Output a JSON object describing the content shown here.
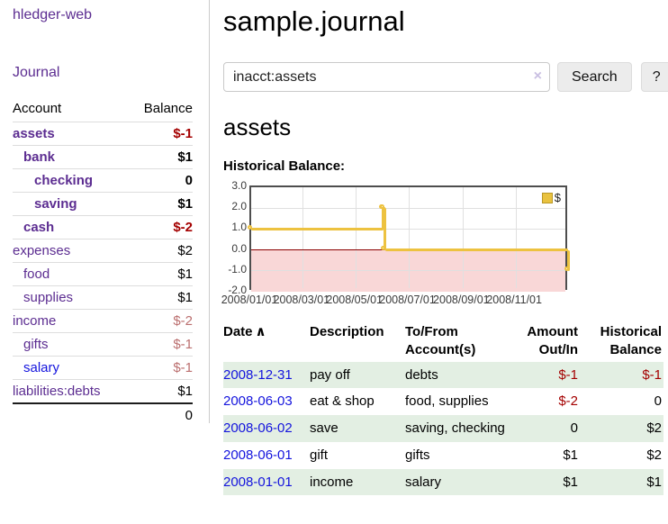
{
  "app": {
    "brand": "hledger-web"
  },
  "sidebar": {
    "journal_link": "Journal",
    "accounts_table": {
      "headers": {
        "account": "Account",
        "balance": "Balance"
      },
      "rows": [
        {
          "account": "assets",
          "balance": "$-1",
          "indent": 0,
          "bold": true,
          "account_color": "purple",
          "balance_tone": "neg-strong"
        },
        {
          "account": "bank",
          "balance": "$1",
          "indent": 1,
          "bold": true,
          "account_color": "purple",
          "balance_tone": "normal"
        },
        {
          "account": "checking",
          "balance": "0",
          "indent": 2,
          "bold": true,
          "account_color": "purple",
          "balance_tone": "normal"
        },
        {
          "account": "saving",
          "balance": "$1",
          "indent": 2,
          "bold": true,
          "account_color": "purple",
          "balance_tone": "normal"
        },
        {
          "account": "cash",
          "balance": "$-2",
          "indent": 1,
          "bold": true,
          "account_color": "purple",
          "balance_tone": "neg-strong"
        },
        {
          "account": "expenses",
          "balance": "$2",
          "indent": 0,
          "bold": false,
          "account_color": "purple",
          "balance_tone": "normal"
        },
        {
          "account": "food",
          "balance": "$1",
          "indent": 1,
          "bold": false,
          "account_color": "purple",
          "balance_tone": "normal"
        },
        {
          "account": "supplies",
          "balance": "$1",
          "indent": 1,
          "bold": false,
          "account_color": "purple",
          "balance_tone": "normal"
        },
        {
          "account": "income",
          "balance": "$-2",
          "indent": 0,
          "bold": false,
          "account_color": "purple",
          "balance_tone": "neg-soft"
        },
        {
          "account": "gifts",
          "balance": "$-1",
          "indent": 1,
          "bold": false,
          "account_color": "purple",
          "balance_tone": "neg-soft"
        },
        {
          "account": "salary",
          "balance": "$-1",
          "indent": 1,
          "bold": false,
          "account_color": "blue",
          "balance_tone": "neg-soft"
        },
        {
          "account": "liabilities:debts",
          "balance": "$1",
          "indent": 0,
          "bold": false,
          "account_color": "purple",
          "balance_tone": "normal"
        }
      ],
      "total": "0"
    }
  },
  "main": {
    "title": "sample.journal",
    "search": {
      "value": "inacct:assets",
      "clear_icon": "×",
      "search_button": "Search",
      "help_button": "?"
    },
    "section_title": "assets",
    "chart_heading": "Historical Balance:"
  },
  "chart_data": {
    "type": "line",
    "title": "Historical Balance",
    "step": true,
    "x_range": [
      "2008-01-01",
      "2009-01-01"
    ],
    "ylim": [
      -2,
      3
    ],
    "yticks": [
      {
        "value": 3,
        "label": "3.0"
      },
      {
        "value": 2,
        "label": "2.0"
      },
      {
        "value": 1,
        "label": "1.0"
      },
      {
        "value": 0,
        "label": "0.0"
      },
      {
        "value": -1,
        "label": "-1.0"
      },
      {
        "value": -2,
        "label": "-2.0"
      }
    ],
    "xticks": [
      {
        "date": "2008-01-01",
        "label": "2008/01/01"
      },
      {
        "date": "2008-03-01",
        "label": "2008/03/01"
      },
      {
        "date": "2008-05-01",
        "label": "2008/05/01"
      },
      {
        "date": "2008-07-01",
        "label": "2008/07/01"
      },
      {
        "date": "2008-09-01",
        "label": "2008/09/01"
      },
      {
        "date": "2008-11-01",
        "label": "2008/11/01"
      }
    ],
    "series": [
      {
        "name": "$",
        "color": "#edc240",
        "points": [
          {
            "date": "2008-01-01",
            "value": 1
          },
          {
            "date": "2008-06-01",
            "value": 2
          },
          {
            "date": "2008-06-02",
            "value": 2
          },
          {
            "date": "2008-06-03",
            "value": 0
          },
          {
            "date": "2008-12-31",
            "value": -1
          }
        ]
      }
    ],
    "legend": {
      "position": "top-right",
      "entries": [
        {
          "label": "$",
          "color": "#e9c23f"
        }
      ]
    },
    "grid": true,
    "grid_color": "#e0e0e0",
    "zero_line_color": "#8b0000",
    "negative_region_color": "#f9d7d7"
  },
  "register": {
    "headers": {
      "date": "Date",
      "sort_icon": "∧",
      "description": "Description",
      "accounts": "To/From Account(s)",
      "amount": "Amount Out/In",
      "balance": "Historical Balance"
    },
    "rows": [
      {
        "date": "2008-12-31",
        "description": "pay off",
        "accounts": "debts",
        "amount": "$-1",
        "amount_negative": true,
        "balance": "$-1",
        "balance_negative": true
      },
      {
        "date": "2008-06-03",
        "description": "eat & shop",
        "accounts": "food, supplies",
        "amount": "$-2",
        "amount_negative": true,
        "balance": "0",
        "balance_negative": false
      },
      {
        "date": "2008-06-02",
        "description": "save",
        "accounts": "saving, checking",
        "amount": "0",
        "amount_negative": false,
        "balance": "$2",
        "balance_negative": false
      },
      {
        "date": "2008-06-01",
        "description": "gift",
        "accounts": "gifts",
        "amount": "$1",
        "amount_negative": false,
        "balance": "$2",
        "balance_negative": false
      },
      {
        "date": "2008-01-01",
        "description": "income",
        "accounts": "salary",
        "amount": "$1",
        "amount_negative": false,
        "balance": "$1",
        "balance_negative": false
      }
    ]
  },
  "colors": {
    "link_purple": "#5c2d91",
    "link_blue": "#1414dd",
    "negative_strong": "#a40000",
    "negative_soft": "#bb6f6f",
    "row_green": "#e3efe3",
    "accent_gold": "#edc240"
  }
}
